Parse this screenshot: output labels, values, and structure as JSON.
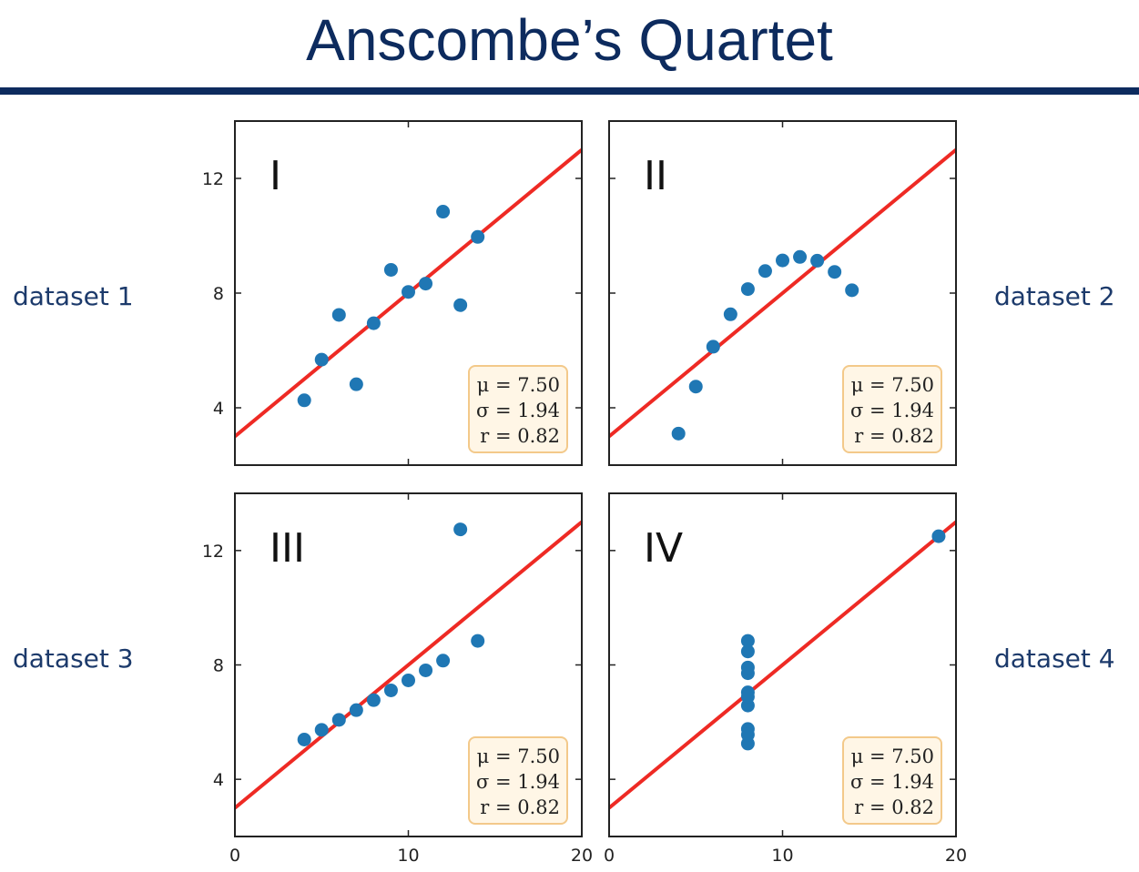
{
  "title": "Anscombe’s Quartet",
  "colors": {
    "title": "#0d2b5e",
    "label": "#1c3a6b",
    "point": "#1f77b4",
    "fit_line": "#ee2a24",
    "stats_fill": "#fff6e6",
    "stats_border": "#f3c98a"
  },
  "chart_data": [
    {
      "type": "scatter",
      "label": "dataset 1",
      "roman": "I",
      "xlim": [
        0,
        20
      ],
      "ylim": [
        2,
        14
      ],
      "xticks": [
        0,
        10,
        20
      ],
      "yticks": [
        4,
        8,
        12
      ],
      "x": [
        10,
        8,
        13,
        9,
        11,
        14,
        6,
        4,
        12,
        7,
        5
      ],
      "y": [
        8.04,
        6.95,
        7.58,
        8.81,
        8.33,
        9.96,
        7.24,
        4.26,
        10.84,
        4.82,
        5.68
      ],
      "fit": {
        "intercept": 3.0,
        "slope": 0.5
      },
      "stats": [
        "μ = 7.50",
        "σ = 1.94",
        "r = 0.82"
      ]
    },
    {
      "type": "scatter",
      "label": "dataset 2",
      "roman": "II",
      "xlim": [
        0,
        20
      ],
      "ylim": [
        2,
        14
      ],
      "xticks": [
        0,
        10,
        20
      ],
      "yticks": [
        4,
        8,
        12
      ],
      "x": [
        10,
        8,
        13,
        9,
        11,
        14,
        6,
        4,
        12,
        7,
        5
      ],
      "y": [
        9.14,
        8.14,
        8.74,
        8.77,
        9.26,
        8.1,
        6.13,
        3.1,
        9.13,
        7.26,
        4.74
      ],
      "fit": {
        "intercept": 3.0,
        "slope": 0.5
      },
      "stats": [
        "μ = 7.50",
        "σ = 1.94",
        "r = 0.82"
      ]
    },
    {
      "type": "scatter",
      "label": "dataset 3",
      "roman": "III",
      "xlim": [
        0,
        20
      ],
      "ylim": [
        2,
        14
      ],
      "xticks": [
        0,
        10,
        20
      ],
      "yticks": [
        4,
        8,
        12
      ],
      "x": [
        10,
        8,
        13,
        9,
        11,
        14,
        6,
        4,
        12,
        7,
        5
      ],
      "y": [
        7.46,
        6.77,
        12.74,
        7.11,
        7.81,
        8.84,
        6.08,
        5.39,
        8.15,
        6.42,
        5.73
      ],
      "fit": {
        "intercept": 3.0,
        "slope": 0.5
      },
      "stats": [
        "μ = 7.50",
        "σ = 1.94",
        "r = 0.82"
      ]
    },
    {
      "type": "scatter",
      "label": "dataset 4",
      "roman": "IV",
      "xlim": [
        0,
        20
      ],
      "ylim": [
        2,
        14
      ],
      "xticks": [
        0,
        10,
        20
      ],
      "yticks": [
        4,
        8,
        12
      ],
      "x": [
        8,
        8,
        8,
        8,
        8,
        8,
        8,
        19,
        8,
        8,
        8
      ],
      "y": [
        6.58,
        5.76,
        7.71,
        8.84,
        8.47,
        7.04,
        5.25,
        12.5,
        5.56,
        7.91,
        6.89
      ],
      "fit": {
        "intercept": 3.0,
        "slope": 0.5
      },
      "stats": [
        "μ = 7.50",
        "σ = 1.94",
        "r = 0.82"
      ]
    }
  ]
}
